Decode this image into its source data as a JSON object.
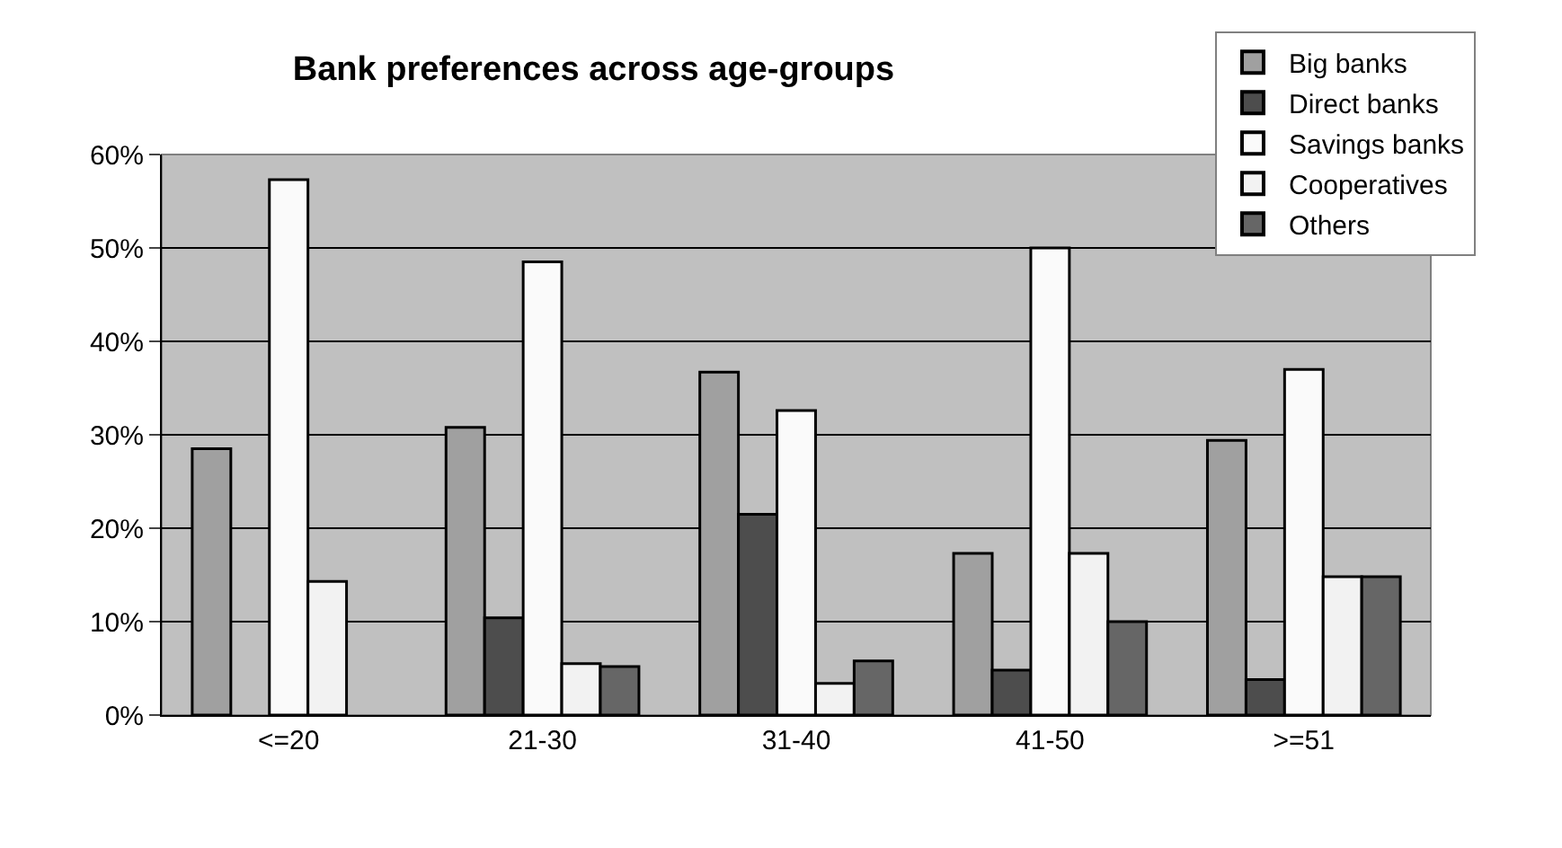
{
  "chart_data": {
    "type": "bar",
    "title": "Bank preferences across age-groups",
    "categories": [
      "<=20",
      "21-30",
      "31-40",
      "41-50",
      ">=51"
    ],
    "series": [
      {
        "name": "Big banks",
        "color": "#a0a0a0",
        "values": [
          28.5,
          30.8,
          36.7,
          17.3,
          29.4
        ]
      },
      {
        "name": "Direct banks",
        "color": "#4d4d4d",
        "values": [
          0,
          10.4,
          21.5,
          4.8,
          3.8
        ]
      },
      {
        "name": "Savings banks",
        "color": "#fafafa",
        "values": [
          57.3,
          48.5,
          32.6,
          50.0,
          37.0
        ]
      },
      {
        "name": "Cooperatives",
        "color": "#f2f2f2",
        "values": [
          14.3,
          5.5,
          3.4,
          17.3,
          14.8
        ]
      },
      {
        "name": "Others",
        "color": "#666666",
        "values": [
          0,
          5.2,
          5.8,
          10.0,
          14.8
        ]
      }
    ],
    "ylim": [
      0,
      60
    ],
    "yticks": [
      {
        "value": 0,
        "label": "0%"
      },
      {
        "value": 10,
        "label": "10%"
      },
      {
        "value": 20,
        "label": "20%"
      },
      {
        "value": 30,
        "label": "30%"
      },
      {
        "value": 40,
        "label": "40%"
      },
      {
        "value": 50,
        "label": "50%"
      },
      {
        "value": 60,
        "label": "60%"
      }
    ],
    "grid": "y",
    "legend": "top right"
  }
}
